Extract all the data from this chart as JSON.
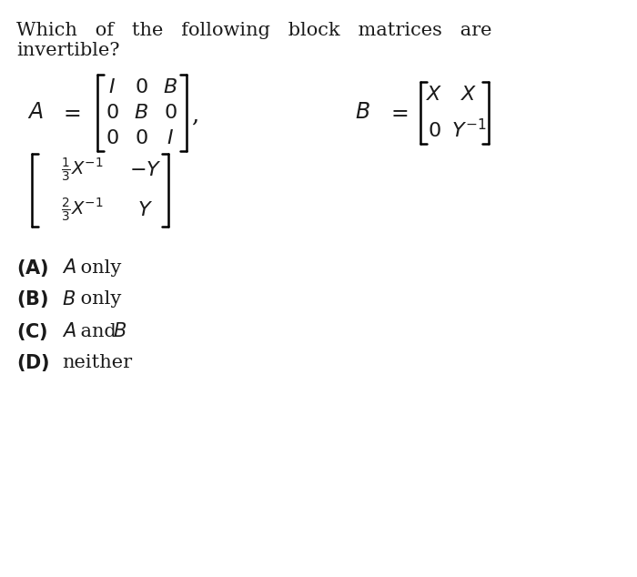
{
  "background_color": "#ffffff",
  "title_line1": "Which   of   the   following   block   matrices   are",
  "title_line2": "invertible?",
  "question_text": "Which of the following block matrices are invertible?",
  "options": [
    {
      "label": "(A)",
      "italic": "A",
      "rest": " only"
    },
    {
      "label": "(B)",
      "italic": "B",
      "rest": " only"
    },
    {
      "label": "(C)",
      "italic": "A",
      "rest": " and ",
      "italic2": "B"
    },
    {
      "label": "(D)",
      "rest": "neither"
    }
  ],
  "font_size_question": 16,
  "font_size_math": 16,
  "font_size_options": 16,
  "text_color": "#1a1a1a"
}
